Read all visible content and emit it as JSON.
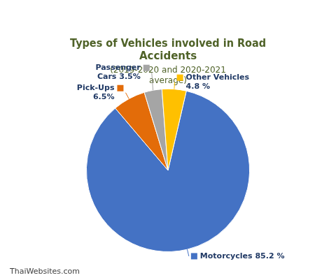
{
  "chart_data": {
    "type": "pie",
    "title": "Types of Vehicles involved in Road\nAccidents",
    "subtitle": "(2019-2020 and 2020-2021\naverage)",
    "categories": [
      "Motorcycles 85.2 %",
      "Pick-Ups\n6.5%",
      "Passenger\nCars 3.5%",
      "Other Vehicles\n4.8 %"
    ],
    "values": [
      85.2,
      6.5,
      3.5,
      4.8
    ],
    "colors": [
      "#4472C4",
      "#E36C09",
      "#A5A5A5",
      "#FFC000"
    ],
    "annotations": [
      "ThaiWebsites.com"
    ]
  }
}
